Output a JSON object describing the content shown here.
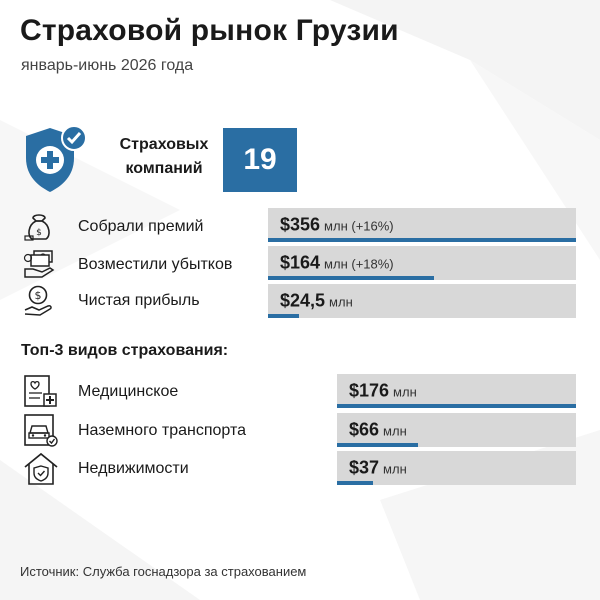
{
  "header": {
    "title": "Страховой рынок Грузии",
    "subtitle": "январь-июнь 2026 года"
  },
  "companies": {
    "label": "Страховых компаний",
    "value": "19"
  },
  "metrics": [
    {
      "label": "Собрали премий",
      "value": "$356",
      "unit": "млн (+16%)",
      "bar_fraction": 1.0
    },
    {
      "label": "Возместили убытков",
      "value": "$164",
      "unit": "млн (+18%)",
      "bar_fraction": 0.54
    },
    {
      "label": "Чистая прибыль",
      "value": "$24,5",
      "unit": "млн",
      "bar_fraction": 0.1
    }
  ],
  "top3": {
    "title": "Топ-3 видов страхования:",
    "items": [
      {
        "label": "Медицинское",
        "value": "$176",
        "unit": "млн",
        "bar_fraction": 1.0
      },
      {
        "label": "Наземного транспорта",
        "value": "$66",
        "unit": "млн",
        "bar_fraction": 0.34
      },
      {
        "label": "Недвижимости",
        "value": "$37",
        "unit": "млн",
        "bar_fraction": 0.15
      }
    ]
  },
  "source": "Источник: Служба госнадзора за страхованием",
  "colors": {
    "accent": "#2a6ea3",
    "bar_bg": "#d8d8d8",
    "text": "#1a1a1a"
  },
  "icons": [
    "shield-check-icon",
    "money-bag-icon",
    "cash-hand-icon",
    "coin-hand-icon",
    "medical-record-icon",
    "car-document-icon",
    "house-shield-icon"
  ]
}
